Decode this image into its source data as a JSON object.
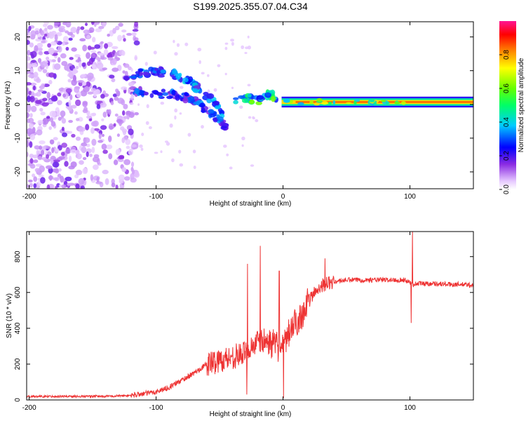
{
  "title": "S199.2025.355.07.04.C34",
  "colors": {
    "snr_line": "#ee3333",
    "colormap": [
      "#e6c8ff",
      "#8a2be2",
      "#0000ff",
      "#00ccff",
      "#00ff00",
      "#ffff00",
      "#ff6600",
      "#ff0000",
      "#ff1493"
    ]
  },
  "chart_data": [
    {
      "type": "heatmap",
      "name": "spectrogram",
      "xlabel": "Height of straight line (km)",
      "ylabel": "Frequency (Hz)",
      "xlim": [
        -202,
        150
      ],
      "ylim": [
        -25,
        24.5
      ],
      "xticks": [
        -200,
        -100,
        0,
        100
      ],
      "xtick_labels": [
        "-200",
        "-100",
        "0",
        "100"
      ],
      "yticks": [
        20,
        10,
        0,
        -10,
        -20
      ],
      "ytick_labels": [
        "20",
        "10",
        "0",
        "-10",
        "-20"
      ],
      "colorbar": {
        "label": "Normalized spectral amplitude",
        "range": [
          0,
          1
        ],
        "ticks": [
          0.0,
          0.2,
          0.4,
          0.6,
          0.8
        ],
        "tick_labels": [
          "0.0",
          "0.2",
          "0.4",
          "0.6",
          "0.8"
        ]
      },
      "features": [
        {
          "desc": "scattered low-amplitude noise",
          "x_range": [
            -202,
            -120
          ],
          "f_range": [
            -25,
            24.5
          ],
          "amplitude": 0.1
        },
        {
          "desc": "upper wave branch",
          "x": [
            -125,
            -110,
            -90,
            -75,
            -65,
            -55,
            -48
          ],
          "f": [
            8,
            9.5,
            9.5,
            7,
            4,
            1,
            -3
          ],
          "amplitude": 0.3
        },
        {
          "desc": "lower wave branch",
          "x": [
            -120,
            -100,
            -85,
            -72,
            -60,
            -50,
            -45
          ],
          "f": [
            4,
            3,
            3,
            1.5,
            -1.5,
            -4.5,
            -7
          ],
          "amplitude": 0.25
        },
        {
          "desc": "transition blobs",
          "x": [
            -40,
            -28,
            -20,
            -12,
            -5
          ],
          "f": [
            1.5,
            2,
            1,
            3,
            2
          ],
          "amplitude": 0.45
        },
        {
          "desc": "steady band",
          "x": [
            0,
            150
          ],
          "f": [
            0.7,
            0.7
          ],
          "amplitude": 0.85
        }
      ]
    },
    {
      "type": "line",
      "name": "snr",
      "xlabel": "Height of straight line (km)",
      "ylabel": "SNR (10 * v/v)",
      "xlim": [
        -202,
        150
      ],
      "ylim": [
        0,
        940
      ],
      "xticks": [
        -200,
        -100,
        0,
        100
      ],
      "xtick_labels": [
        "-200",
        "-100",
        "0",
        "100"
      ],
      "yticks": [
        0,
        200,
        400,
        600,
        800
      ],
      "ytick_labels": [
        "0",
        "200",
        "400",
        "600",
        "800"
      ],
      "series": [
        {
          "name": "SNR",
          "x": [
            -202,
            -180,
            -160,
            -140,
            -120,
            -110,
            -100,
            -90,
            -80,
            -70,
            -60,
            -50,
            -40,
            -30,
            -25,
            -20,
            -15,
            -10,
            -5,
            -2,
            0,
            5,
            10,
            15,
            20,
            25,
            30,
            35,
            40,
            50,
            60,
            70,
            80,
            90,
            95,
            100,
            102,
            105,
            110,
            120,
            130,
            140,
            150
          ],
          "y": [
            20,
            20,
            20,
            20,
            25,
            35,
            45,
            70,
            110,
            150,
            200,
            220,
            240,
            260,
            300,
            320,
            330,
            320,
            300,
            280,
            280,
            380,
            430,
            480,
            550,
            600,
            640,
            650,
            660,
            670,
            670,
            670,
            670,
            670,
            670,
            660,
            640,
            650,
            650,
            650,
            645,
            645,
            640
          ]
        }
      ],
      "spikes": [
        {
          "x": -18,
          "y": 860
        },
        {
          "x": -28,
          "y": 760
        },
        {
          "x": -28.5,
          "y": 30
        },
        {
          "x": -3,
          "y": 720
        },
        {
          "x": 0.5,
          "y": 10
        },
        {
          "x": 33,
          "y": 790
        },
        {
          "x": 101,
          "y": 430
        },
        {
          "x": 102,
          "y": 940
        }
      ]
    }
  ]
}
